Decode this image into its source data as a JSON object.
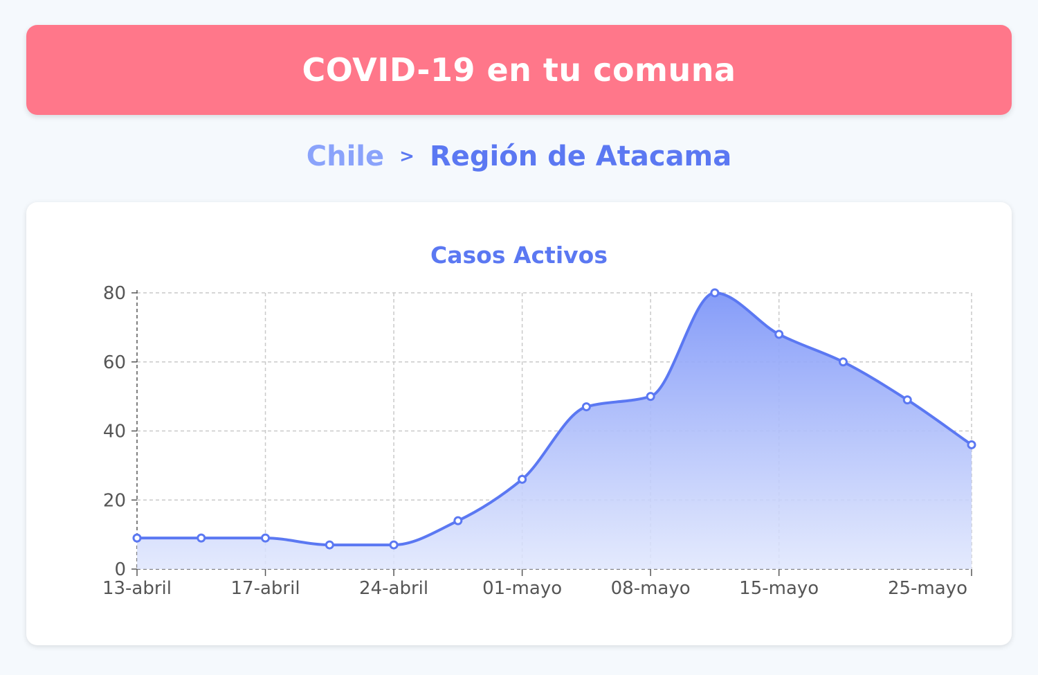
{
  "header": {
    "title": "COVID-19 en tu comuna"
  },
  "breadcrumb": {
    "country": "Chile",
    "separator": ">",
    "region": "Región de Atacama"
  },
  "colors": {
    "header_bg": "#ff778a",
    "accent": "#5b78f2",
    "accent_light": "#8aa3fb"
  },
  "chart_data": {
    "type": "area",
    "title": "Casos Activos",
    "xlabel": "",
    "ylabel": "",
    "ylim": [
      0,
      80
    ],
    "yticks": [
      0,
      20,
      40,
      60,
      80
    ],
    "xticks": [
      {
        "value": "13-abril",
        "label": "13-abril"
      },
      {
        "value": "17-abril",
        "label": "17-abril"
      },
      {
        "value": "24-abril",
        "label": "24-abril"
      },
      {
        "value": "01-mayo",
        "label": "01-mayo"
      },
      {
        "value": "08-mayo",
        "label": "08-mayo"
      },
      {
        "value": "15-mayo",
        "label": "15-mayo"
      },
      {
        "value": "25-mayo",
        "label": "25-mayo"
      }
    ],
    "grid": true,
    "x": [
      "13-abril",
      "15-abril",
      "17-abril",
      "21-abril",
      "24-abril",
      "27-abril",
      "01-mayo",
      "04-mayo",
      "08-mayo",
      "11-mayo",
      "15-mayo",
      "18-mayo",
      "22-mayo",
      "25-mayo"
    ],
    "values": [
      9,
      9,
      9,
      7,
      7,
      14,
      26,
      47,
      50,
      80,
      68,
      60,
      49,
      36
    ]
  }
}
